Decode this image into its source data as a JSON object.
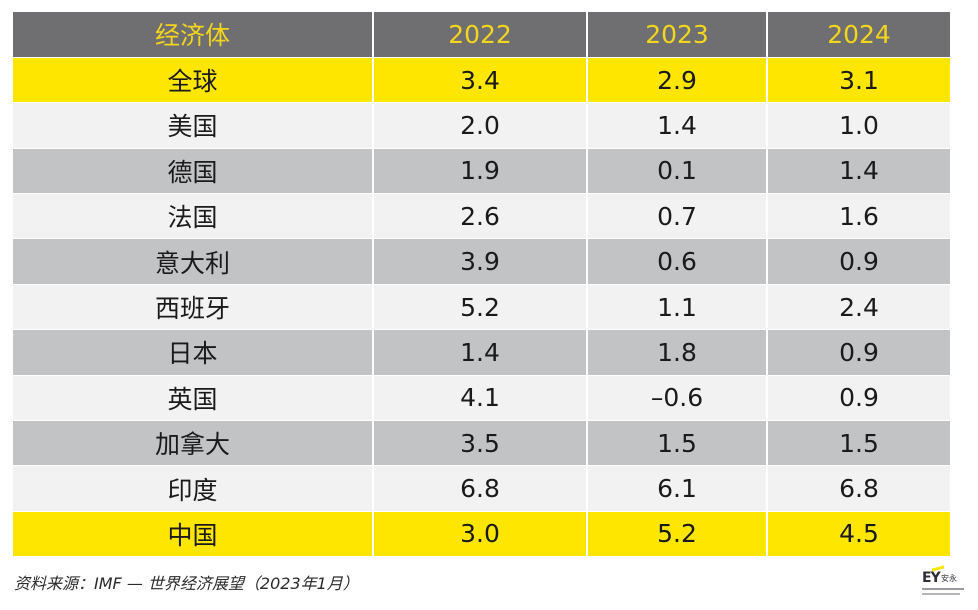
{
  "table": {
    "headers": [
      "经济体",
      "2022",
      "2023",
      "2024"
    ],
    "rows": [
      {
        "name": "全球",
        "v2022": "3.4",
        "v2023": "2.9",
        "v2024": "3.1",
        "style": "yellow"
      },
      {
        "name": "美国",
        "v2022": "2.0",
        "v2023": "1.4",
        "v2024": "1.0",
        "style": "light"
      },
      {
        "name": "德国",
        "v2022": "1.9",
        "v2023": "0.1",
        "v2024": "1.4",
        "style": "dark"
      },
      {
        "name": "法国",
        "v2022": "2.6",
        "v2023": "0.7",
        "v2024": "1.6",
        "style": "light"
      },
      {
        "name": "意大利",
        "v2022": "3.9",
        "v2023": "0.6",
        "v2024": "0.9",
        "style": "dark"
      },
      {
        "name": "西班牙",
        "v2022": "5.2",
        "v2023": "1.1",
        "v2024": "2.4",
        "style": "light"
      },
      {
        "name": "日本",
        "v2022": "1.4",
        "v2023": "1.8",
        "v2024": "0.9",
        "style": "dark"
      },
      {
        "name": "英国",
        "v2022": "4.1",
        "v2023": "–0.6",
        "v2024": "0.9",
        "style": "light"
      },
      {
        "name": "加拿大",
        "v2022": "3.5",
        "v2023": "1.5",
        "v2024": "1.5",
        "style": "dark"
      },
      {
        "name": "印度",
        "v2022": "6.8",
        "v2023": "6.1",
        "v2024": "6.8",
        "style": "light"
      },
      {
        "name": "中国",
        "v2022": "3.0",
        "v2023": "5.2",
        "v2024": "4.5",
        "style": "yellow"
      }
    ]
  },
  "footer": {
    "source": "资料来源：IMF — 世界经济展望（2023年1月）"
  },
  "logo": {
    "mark": "EY",
    "cn": "安永"
  },
  "colors": {
    "header_bg": "#6f6f72",
    "header_text": "#f2d51c",
    "highlight": "#ffe600",
    "row_light": "#f2f2f3",
    "row_dark": "#c2c3c5"
  }
}
